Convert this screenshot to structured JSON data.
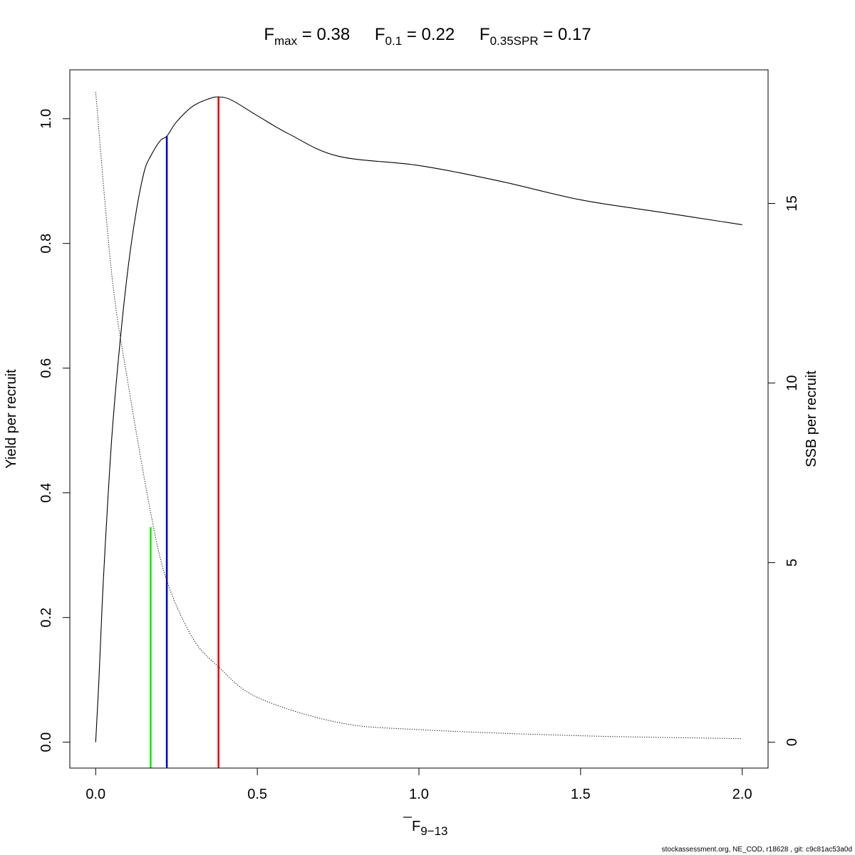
{
  "chart_data": {
    "type": "line",
    "title": {
      "fmax": {
        "main": "F",
        "sub": "max",
        "value": " = 0.38"
      },
      "f01": {
        "main": "F",
        "sub": "0.1",
        "value": " = 0.22"
      },
      "fspr": {
        "main": "F",
        "sub": "0.35SPR",
        "value": " = 0.17"
      }
    },
    "xlabel": {
      "main": "F",
      "sub": "9−13"
    },
    "ylabel": "Yield per recruit",
    "y2label": "SSB per recruit",
    "xlim": [
      -0.08,
      2.08
    ],
    "ylim": [
      -0.0415,
      1.0785
    ],
    "y2lim": [
      -0.72,
      18.72
    ],
    "x_ticks": [
      0.0,
      0.5,
      1.0,
      1.5,
      2.0
    ],
    "x_tick_labels": [
      "0.0",
      "0.5",
      "1.0",
      "1.5",
      "2.0"
    ],
    "y_ticks": [
      0.0,
      0.2,
      0.4,
      0.6,
      0.8,
      1.0
    ],
    "y_tick_labels": [
      "0.0",
      "0.2",
      "0.4",
      "0.6",
      "0.8",
      "1.0"
    ],
    "y2_ticks": [
      0,
      5,
      10,
      15
    ],
    "y2_tick_labels": [
      "0",
      "5",
      "10",
      "15"
    ],
    "series": [
      {
        "axis": "left",
        "style": "solid",
        "color": "#000000",
        "x": [
          0,
          0.01,
          0.02,
          0.03,
          0.05,
          0.075,
          0.1,
          0.125,
          0.15,
          0.17,
          0.2,
          0.22,
          0.25,
          0.3,
          0.35,
          0.38,
          0.42,
          0.5,
          0.6,
          0.75,
          1.0,
          1.25,
          1.5,
          1.75,
          2.0
        ],
        "y": [
          0,
          0.1,
          0.22,
          0.32,
          0.49,
          0.64,
          0.76,
          0.85,
          0.915,
          0.94,
          0.965,
          0.972,
          0.995,
          1.02,
          1.032,
          1.035,
          1.03,
          1.005,
          0.975,
          0.94,
          0.925,
          0.9,
          0.87,
          0.85,
          0.83
        ]
      },
      {
        "axis": "right",
        "style": "dotted",
        "color": "#000000",
        "x": [
          0,
          0.05,
          0.1,
          0.17,
          0.22,
          0.3,
          0.38,
          0.5,
          0.75,
          1.0,
          1.5,
          2.0
        ],
        "y": [
          18.1,
          13.0,
          10.0,
          6.4,
          4.5,
          2.9,
          2.1,
          1.25,
          0.55,
          0.35,
          0.18,
          0.1
        ]
      }
    ],
    "reference_lines": [
      {
        "name": "F0.35SPR",
        "x": 0.17,
        "y_top": 0.345,
        "color": "#00ee00"
      },
      {
        "name": "F0.1",
        "x": 0.22,
        "y_top": 0.972,
        "color": "#0000cc"
      },
      {
        "name": "Fmax",
        "x": 0.38,
        "y_top": 1.035,
        "color": "#ee0000"
      }
    ]
  },
  "footer": "stockassessment.org, NE_COD, r18628 , git: c9c81ac53a0d"
}
